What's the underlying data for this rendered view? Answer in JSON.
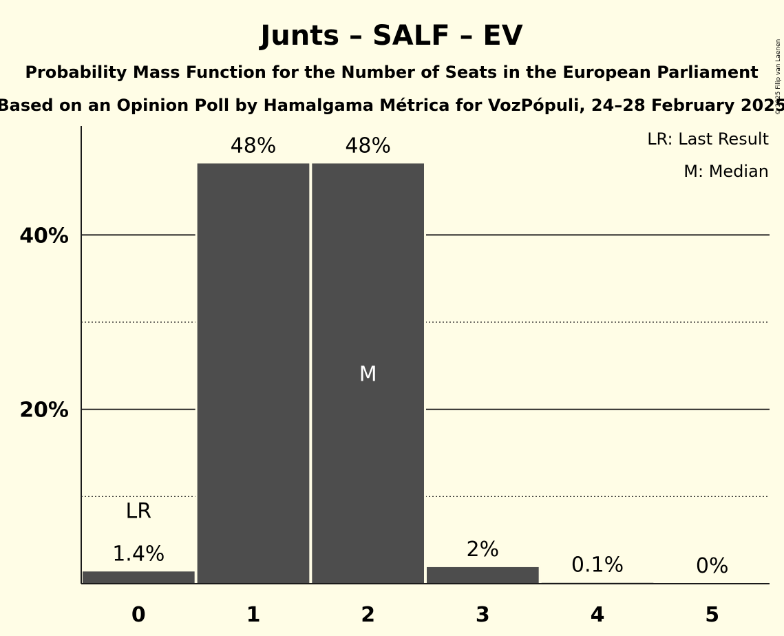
{
  "chart_data": {
    "type": "bar",
    "title": "Junts – SALF – EV",
    "subtitle_1": "Probability Mass Function for the Number of Seats in the European Parliament",
    "subtitle_2": "Based on an Opinion Poll by Hamalgama Métrica for VozPópuli, 24–28 February 2025",
    "categories": [
      "0",
      "1",
      "2",
      "3",
      "4",
      "5"
    ],
    "values": [
      1.4,
      48.2,
      48.2,
      1.9,
      0.1,
      0
    ],
    "value_labels": [
      "1.4%",
      "48%",
      "48%",
      "2%",
      "0.1%",
      "0%"
    ],
    "ylim": [
      0,
      52.5
    ],
    "y_ticks": [
      {
        "value": 20,
        "label": "20%"
      },
      {
        "value": 40,
        "label": "40%"
      }
    ],
    "y_minor_ticks": [
      10,
      30
    ],
    "last_result": {
      "category": "0",
      "marker": "LR"
    },
    "median": {
      "category": "2",
      "marker": "M"
    },
    "legend": [
      "LR: Last Result",
      "M: Median"
    ],
    "legend_position": "top-right",
    "bar_color": "#4d4d4d",
    "background": "#fffde6"
  },
  "copyright": "© 2025 Filip van Laenen"
}
